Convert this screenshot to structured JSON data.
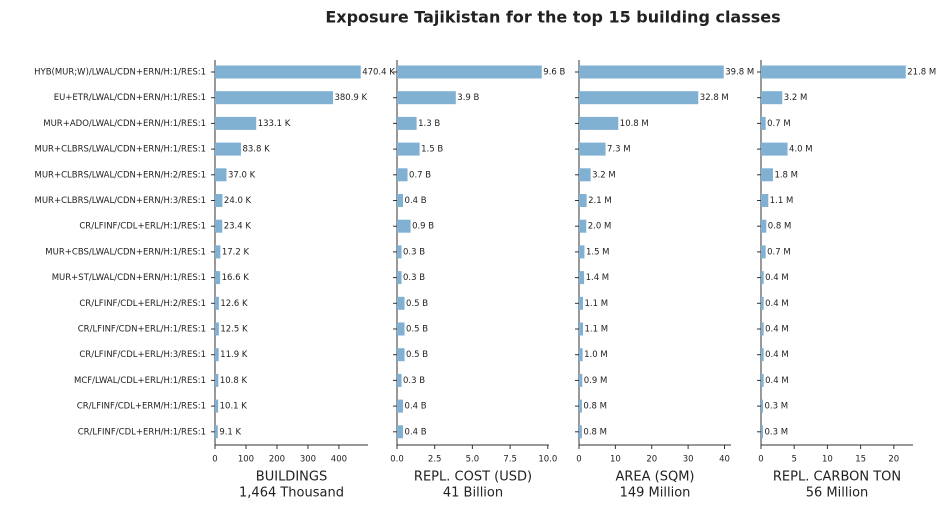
{
  "title": "Exposure Tajikistan for the top 15 building classes",
  "chart_data": [
    {
      "type": "barh",
      "color": "#80b1d3",
      "categories": [
        "HYB(MUR;W)/LWAL/CDN+ERN/H:1/RES:1",
        "EU+ETR/LWAL/CDN+ERN/H:1/RES:1",
        "MUR+ADO/LWAL/CDN+ERN/H:1/RES:1",
        "MUR+CLBRS/LWAL/CDN+ERN/H:1/RES:1",
        "MUR+CLBRS/LWAL/CDN+ERN/H:2/RES:1",
        "MUR+CLBRS/LWAL/CDN+ERN/H:3/RES:1",
        "CR/LFINF/CDL+ERL/H:1/RES:1",
        "MUR+CBS/LWAL/CDN+ERN/H:1/RES:1",
        "MUR+ST/LWAL/CDN+ERN/H:1/RES:1",
        "CR/LFINF/CDL+ERL/H:2/RES:1",
        "CR/LFINF/CDN+ERL/H:1/RES:1",
        "CR/LFINF/CDL+ERL/H:3/RES:1",
        "MCF/LWAL/CDL+ERL/H:1/RES:1",
        "CR/LFINF/CDL+ERM/H:1/RES:1",
        "CR/LFINF/CDL+ERH/H:1/RES:1"
      ],
      "values": [
        470.4,
        380.9,
        133.1,
        83.8,
        37.0,
        24.0,
        23.4,
        17.2,
        16.6,
        12.6,
        12.5,
        11.9,
        10.8,
        10.1,
        9.1
      ],
      "value_labels": [
        "470.4 K",
        "380.9 K",
        "133.1 K",
        "83.8 K",
        "37.0 K",
        "24.0 K",
        "23.4 K",
        "17.2 K",
        "16.6 K",
        "12.6 K",
        "12.5 K",
        "11.9 K",
        "10.8 K",
        "10.1 K",
        "9.1 K"
      ],
      "xlim": [
        0,
        493.92
      ],
      "xticks": [
        0,
        100,
        200,
        300,
        400
      ],
      "xlabel": [
        "BUILDINGS",
        "1,464 Thousand"
      ]
    },
    {
      "type": "barh",
      "color": "#80b1d3",
      "values": [
        9.6,
        3.9,
        1.3,
        1.5,
        0.7,
        0.4,
        0.9,
        0.3,
        0.3,
        0.5,
        0.5,
        0.5,
        0.3,
        0.4,
        0.4
      ],
      "value_labels": [
        "9.6 B",
        "3.9 B",
        "1.3 B",
        "1.5 B",
        "0.7 B",
        "0.4 B",
        "0.9 B",
        "0.3 B",
        "0.3 B",
        "0.5 B",
        "0.5 B",
        "0.5 B",
        "0.3 B",
        "0.4 B",
        "0.4 B"
      ],
      "xlim": [
        0,
        10.08
      ],
      "xticks": [
        {
          "value": 0,
          "label": "0.0"
        },
        2.5,
        {
          "value": 5,
          "label": "5.0"
        },
        7.5,
        {
          "value": 10,
          "label": "10.0"
        }
      ],
      "xlabel": [
        "REPL. COST (USD)",
        "41 Billion"
      ]
    },
    {
      "type": "barh",
      "color": "#80b1d3",
      "values": [
        39.8,
        32.8,
        10.8,
        7.3,
        3.2,
        2.1,
        2.0,
        1.5,
        1.4,
        1.1,
        1.1,
        1.0,
        0.9,
        0.8,
        0.8
      ],
      "value_labels": [
        "39.8 M",
        "32.8 M",
        "10.8 M",
        "7.3 M",
        "3.2 M",
        "2.1 M",
        "2.0 M",
        "1.5 M",
        "1.4 M",
        "1.1 M",
        "1.1 M",
        "1.0 M",
        "0.9 M",
        "0.8 M",
        "0.8 M"
      ],
      "xlim": [
        0,
        41.79
      ],
      "xticks": [
        0,
        10,
        20,
        30,
        40
      ],
      "xlabel": [
        "AREA (SQM)",
        "149 Million"
      ]
    },
    {
      "type": "barh",
      "color": "#80b1d3",
      "values": [
        21.8,
        3.2,
        0.7,
        4.0,
        1.8,
        1.1,
        0.8,
        0.7,
        0.4,
        0.4,
        0.4,
        0.4,
        0.4,
        0.3,
        0.3
      ],
      "value_labels": [
        "21.8 M",
        "3.2 M",
        "0.7 M",
        "4.0 M",
        "1.8 M",
        "1.1 M",
        "0.8 M",
        "0.7 M",
        "0.4 M",
        "0.4 M",
        "0.4 M",
        "0.4 M",
        "0.4 M",
        "0.3 M",
        "0.3 M"
      ],
      "xlim": [
        0,
        22.89
      ],
      "xticks": [
        0,
        5,
        10,
        15,
        20
      ],
      "xlabel": [
        "REPL. CARBON TON",
        "56 Million"
      ]
    }
  ]
}
